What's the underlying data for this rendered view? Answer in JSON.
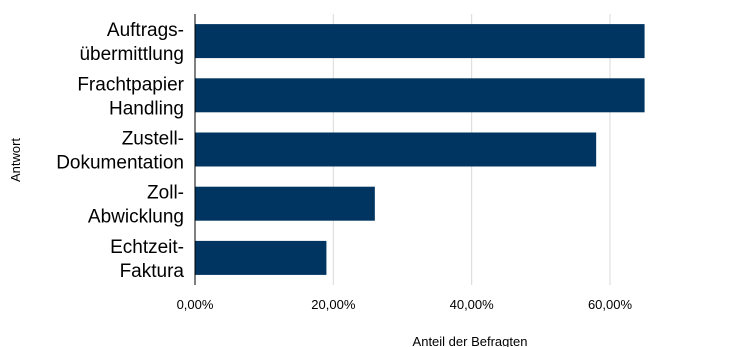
{
  "chart_data": {
    "type": "bar",
    "orientation": "horizontal",
    "categories": [
      [
        "Auftrags-",
        "übermittlung"
      ],
      [
        "Frachtpapier",
        "Handling"
      ],
      [
        "Zustell-",
        "Dokumentation"
      ],
      [
        "Zoll-",
        "Abwicklung"
      ],
      [
        "Echtzeit-",
        "Faktura"
      ]
    ],
    "values": [
      65,
      65,
      58,
      26,
      19
    ],
    "xlabel": "Anteil der Befragten",
    "ylabel": "Antwort",
    "xlim": [
      0,
      70
    ],
    "xticks": [
      0,
      20,
      40,
      60
    ],
    "xtick_labels": [
      "0,00%",
      "20,00%",
      "40,00%",
      "60,00%"
    ],
    "grid": "vertical",
    "bar_color": "#003561",
    "grid_color": "#d9d9d9"
  }
}
